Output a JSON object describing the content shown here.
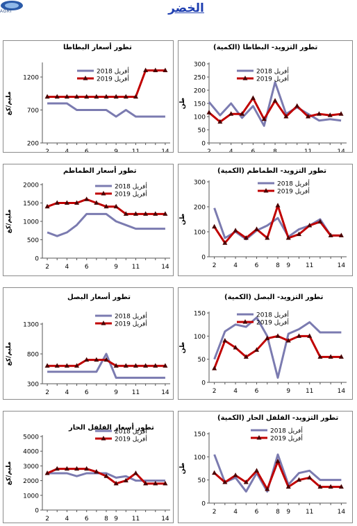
{
  "logo": {
    "text": "AGRI"
  },
  "page_title": "الخضر",
  "chart_data": [
    {
      "id": "potato-qty",
      "type": "line",
      "title": "تطور التزويد- البطاطا (الكمية)",
      "ylabel": "طن",
      "ylim": [
        0,
        300
      ],
      "yticks": [
        0,
        50,
        100,
        150,
        200,
        250,
        300
      ],
      "x": [
        2,
        3,
        4,
        5,
        6,
        7,
        8,
        9,
        10,
        11,
        12,
        13,
        14
      ],
      "xticks": [
        2,
        4,
        6,
        8,
        11,
        14
      ],
      "series": [
        {
          "name": "أفريل 2018",
          "color": "#7b7bb0",
          "marker": false,
          "values": [
            155,
            105,
            150,
            95,
            140,
            65,
            230,
            110,
            135,
            110,
            85,
            90,
            85
          ]
        },
        {
          "name": "أفريل 2019",
          "color": "#c00000",
          "marker": true,
          "values": [
            115,
            80,
            110,
            110,
            170,
            90,
            160,
            100,
            140,
            100,
            110,
            105,
            110
          ]
        }
      ],
      "legend": "top"
    },
    {
      "id": "potato-price",
      "type": "line",
      "title": "تطور أسعار البطاطا",
      "ylabel": "مليم/كغ",
      "ylim": [
        200,
        1400
      ],
      "yticks": [
        200,
        700,
        1200
      ],
      "x": [
        2,
        3,
        4,
        5,
        6,
        7,
        8,
        9,
        10,
        11,
        12,
        13,
        14
      ],
      "xticks": [
        2,
        4,
        6,
        9,
        11,
        14
      ],
      "series": [
        {
          "name": "أفريل 2018",
          "color": "#7b7bb0",
          "marker": false,
          "values": [
            800,
            800,
            800,
            700,
            700,
            700,
            700,
            600,
            700,
            600,
            600,
            600,
            600
          ]
        },
        {
          "name": "أفريل 2019",
          "color": "#c00000",
          "marker": true,
          "values": [
            900,
            900,
            900,
            900,
            900,
            900,
            900,
            900,
            900,
            900,
            1300,
            1300,
            1300
          ]
        }
      ],
      "legend": "top"
    },
    {
      "id": "tomato-qty",
      "type": "line",
      "title": "تطور التزويد- الطماطم (الكمية)",
      "ylabel": "طن",
      "ylim": [
        0,
        300
      ],
      "yticks": [
        0,
        100,
        200,
        300
      ],
      "x": [
        2,
        3,
        4,
        5,
        6,
        7,
        8,
        9,
        10,
        11,
        12,
        13,
        14
      ],
      "xticks": [
        2,
        4,
        6,
        8,
        9,
        11,
        14
      ],
      "series": [
        {
          "name": "أفريل 2018",
          "color": "#7b7bb0",
          "marker": false,
          "values": [
            195,
            75,
            100,
            70,
            105,
            125,
            155,
            80,
            110,
            125,
            150,
            85,
            85
          ]
        },
        {
          "name": "أفريل 2019",
          "color": "#c00000",
          "marker": true,
          "values": [
            120,
            55,
            105,
            75,
            110,
            75,
            205,
            75,
            90,
            125,
            140,
            85,
            85
          ]
        }
      ],
      "legend": "top"
    },
    {
      "id": "tomato-price",
      "type": "line",
      "title": "تطور أسعار الطماطم",
      "ylabel": "مليم/كغ",
      "ylim": [
        0,
        2000
      ],
      "yticks": [
        0,
        500,
        1000,
        1500,
        2000
      ],
      "x": [
        2,
        3,
        4,
        5,
        6,
        7,
        8,
        9,
        10,
        11,
        12,
        13,
        14
      ],
      "xticks": [
        2,
        4,
        6,
        9,
        11,
        14
      ],
      "series": [
        {
          "name": "أفريل 2018",
          "color": "#7b7bb0",
          "marker": false,
          "values": [
            700,
            600,
            700,
            900,
            1200,
            1200,
            1200,
            1000,
            900,
            800,
            800,
            800,
            800
          ]
        },
        {
          "name": "أفريل 2019",
          "color": "#c00000",
          "marker": true,
          "values": [
            1400,
            1500,
            1500,
            1500,
            1600,
            1500,
            1400,
            1400,
            1200,
            1200,
            1200,
            1200,
            1200
          ]
        }
      ],
      "legend": "top"
    },
    {
      "id": "onion-qty",
      "type": "line",
      "title": "تطور التزويد- البصل (الكمية)",
      "ylabel": "طن",
      "ylim": [
        0,
        150
      ],
      "yticks": [
        0,
        50,
        100,
        150
      ],
      "x": [
        2,
        3,
        4,
        5,
        6,
        7,
        8,
        9,
        10,
        11,
        12,
        13,
        14
      ],
      "xticks": [
        2,
        4,
        6,
        9,
        11,
        14
      ],
      "series": [
        {
          "name": "أفريل 2018",
          "color": "#7b7bb0",
          "marker": false,
          "values": [
            50,
            110,
            125,
            120,
            140,
            100,
            10,
            105,
            115,
            130,
            108,
            108,
            108
          ]
        },
        {
          "name": "أفريل 2019",
          "color": "#c00000",
          "marker": true,
          "values": [
            30,
            90,
            75,
            55,
            70,
            95,
            100,
            90,
            100,
            100,
            55,
            55,
            55
          ]
        }
      ],
      "legend": "top"
    },
    {
      "id": "onion-price",
      "type": "line",
      "title": "تطور أسعار البصل",
      "ylabel": "مليم/كغ",
      "ylim": [
        300,
        1300
      ],
      "yticks": [
        300,
        800,
        1300
      ],
      "x": [
        2,
        3,
        4,
        5,
        6,
        7,
        8,
        9,
        10,
        11,
        12,
        13,
        14
      ],
      "xticks": [
        2,
        4,
        6,
        9,
        11,
        14
      ],
      "series": [
        {
          "name": "أفريل 2018",
          "color": "#7b7bb0",
          "marker": false,
          "values": [
            500,
            500,
            500,
            500,
            500,
            500,
            800,
            400,
            400,
            400,
            400,
            400,
            400
          ]
        },
        {
          "name": "أفريل 2019",
          "color": "#c00000",
          "marker": true,
          "values": [
            600,
            600,
            600,
            600,
            700,
            700,
            700,
            600,
            600,
            600,
            600,
            600,
            600
          ]
        }
      ],
      "legend": "top"
    },
    {
      "id": "pepper-qty",
      "type": "line",
      "title": "تطور التزويد- الفلفل الحار (الكمية)",
      "ylabel": "طن",
      "ylim": [
        0,
        150
      ],
      "yticks": [
        0,
        50,
        100,
        150
      ],
      "x": [
        2,
        3,
        4,
        5,
        6,
        7,
        8,
        9,
        10,
        11,
        12,
        13,
        14
      ],
      "xticks": [
        2,
        4,
        6,
        8,
        9,
        11,
        14
      ],
      "series": [
        {
          "name": "أفريل 2018",
          "color": "#7b7bb0",
          "marker": false,
          "values": [
            105,
            45,
            55,
            25,
            65,
            25,
            105,
            40,
            65,
            70,
            50,
            50,
            50
          ]
        },
        {
          "name": "أفريل 2019",
          "color": "#c00000",
          "marker": true,
          "values": [
            65,
            45,
            60,
            45,
            70,
            30,
            90,
            35,
            50,
            55,
            35,
            35,
            35
          ]
        }
      ],
      "legend": "top"
    },
    {
      "id": "pepper-price",
      "type": "line",
      "title": "تطور أسعار الفلفل الحار",
      "ylabel": "مليم/كغ",
      "ylim": [
        0,
        5000
      ],
      "yticks": [
        0,
        1000,
        2000,
        3000,
        4000,
        5000
      ],
      "x": [
        2,
        3,
        4,
        5,
        6,
        7,
        8,
        9,
        10,
        11,
        12,
        13,
        14
      ],
      "xticks": [
        2,
        4,
        6,
        8,
        9,
        11,
        14
      ],
      "series": [
        {
          "name": "أفريل 2018",
          "color": "#7b7bb0",
          "marker": false,
          "values": [
            2500,
            2500,
            2500,
            2300,
            2500,
            2500,
            2500,
            2200,
            2300,
            2000,
            2000,
            2000,
            2000
          ]
        },
        {
          "name": "أفريل 2019",
          "color": "#c00000",
          "marker": true,
          "values": [
            2500,
            2800,
            2800,
            2800,
            2800,
            2600,
            2300,
            1800,
            2000,
            2500,
            1800,
            1800,
            1800
          ]
        }
      ],
      "legend": "top"
    }
  ]
}
